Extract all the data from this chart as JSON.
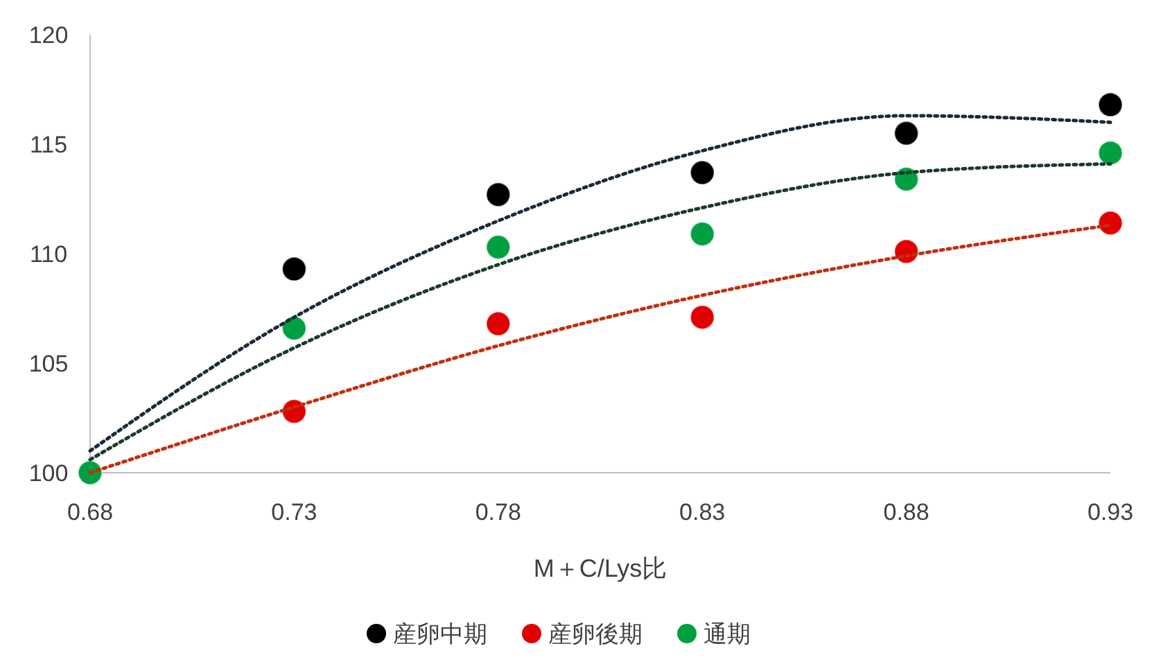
{
  "chart_data": {
    "type": "scatter",
    "xlabel": "M＋C/Lys比",
    "x": [
      0.68,
      0.73,
      0.78,
      0.83,
      0.88,
      0.93
    ],
    "xlim": [
      0.68,
      0.93
    ],
    "xticks": [
      {
        "value": 0.68,
        "label": "0.68"
      },
      {
        "value": 0.73,
        "label": "0.73"
      },
      {
        "value": 0.78,
        "label": "0.78"
      },
      {
        "value": 0.83,
        "label": "0.83"
      },
      {
        "value": 0.88,
        "label": "0.88"
      },
      {
        "value": 0.93,
        "label": "0.93"
      }
    ],
    "ylim": [
      100,
      120
    ],
    "yticks": [
      100,
      105,
      110,
      115,
      120
    ],
    "grid": false,
    "legend": "bottom",
    "marker": "circle",
    "series": [
      {
        "name": "産卵中期",
        "color": "#000000",
        "values": [
          null,
          109.3,
          112.7,
          113.7,
          115.5,
          116.8
        ]
      },
      {
        "name": "産卵後期",
        "color": "#e00000",
        "values": [
          null,
          102.8,
          106.8,
          107.1,
          110.1,
          111.4
        ]
      },
      {
        "name": "通期",
        "color": "#00a040",
        "values": [
          100,
          106.6,
          110.3,
          110.9,
          113.4,
          114.6
        ]
      },
      {
        "type": "line",
        "color": "#1a2a3a",
        "line_style": "dotted",
        "marker": "none",
        "x": [
          0.68,
          0.73,
          0.78,
          0.83,
          0.88,
          0.93
        ],
        "values": [
          101,
          107.1,
          111.5,
          114.7,
          116.3,
          116
        ]
      },
      {
        "type": "line",
        "color": "#c03010",
        "line_style": "dotted",
        "marker": "none",
        "x": [
          0.68,
          0.73,
          0.78,
          0.83,
          0.88,
          0.93
        ],
        "values": [
          100,
          103,
          105.8,
          108.1,
          109.9,
          111.3
        ]
      },
      {
        "type": "line",
        "color": "#1a3a2a",
        "line_style": "dotted",
        "marker": "none",
        "x": [
          0.68,
          0.73,
          0.78,
          0.83,
          0.88,
          0.93
        ],
        "values": [
          100.6,
          105.7,
          109.5,
          112.1,
          113.7,
          114.1
        ]
      }
    ]
  }
}
